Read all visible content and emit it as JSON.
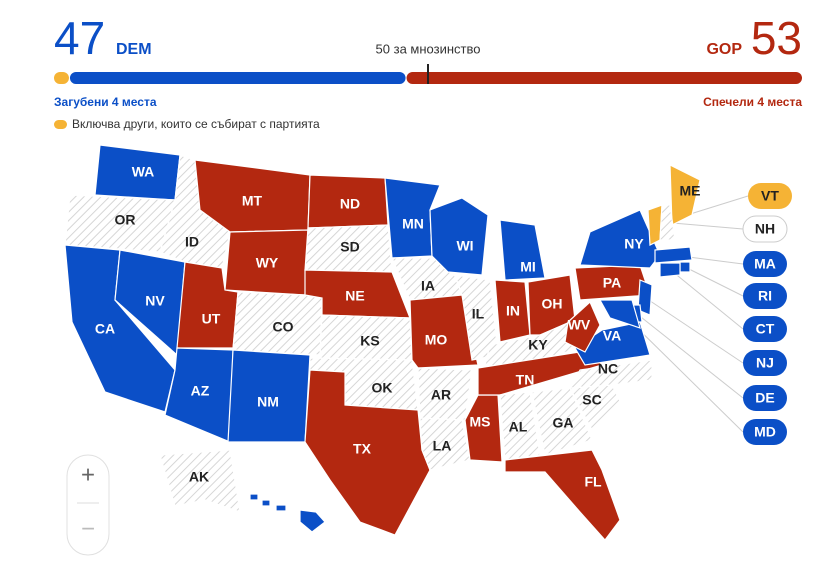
{
  "header": {
    "dem": {
      "seats": 47,
      "label": "DEM",
      "change": "Загубени 4 места"
    },
    "gop": {
      "seats": 53,
      "label": "GOP",
      "change": "Спечели 4 места"
    },
    "majority": {
      "seats": 50,
      "label": "50 за мнозинство"
    }
  },
  "seat_bar": {
    "total": 100,
    "segments": [
      {
        "party": "ind",
        "seats": 2
      },
      {
        "party": "dem",
        "seats": 45
      },
      {
        "party": "gop",
        "seats": 53
      }
    ]
  },
  "legend": {
    "party": "ind",
    "label": "Включва други, които се събират с партията"
  },
  "party_colors": {
    "dem": "#0b4fc7",
    "gop": "#b32810",
    "ind": "#f5b335"
  },
  "states": [
    {
      "label": "WA",
      "party": "dem"
    },
    {
      "label": "OR",
      "party": null
    },
    {
      "label": "CA",
      "party": "dem"
    },
    {
      "label": "NV",
      "party": "dem"
    },
    {
      "label": "ID",
      "party": null
    },
    {
      "label": "MT",
      "party": "gop"
    },
    {
      "label": "WY",
      "party": "gop"
    },
    {
      "label": "UT",
      "party": "gop"
    },
    {
      "label": "CO",
      "party": null
    },
    {
      "label": "AZ",
      "party": "dem"
    },
    {
      "label": "NM",
      "party": "dem"
    },
    {
      "label": "ND",
      "party": "gop"
    },
    {
      "label": "SD",
      "party": null
    },
    {
      "label": "NE",
      "party": "gop"
    },
    {
      "label": "KS",
      "party": null
    },
    {
      "label": "OK",
      "party": null
    },
    {
      "label": "TX",
      "party": "gop"
    },
    {
      "label": "MN",
      "party": "dem"
    },
    {
      "label": "IA",
      "party": null
    },
    {
      "label": "MO",
      "party": "gop"
    },
    {
      "label": "AR",
      "party": null
    },
    {
      "label": "LA",
      "party": null
    },
    {
      "label": "WI",
      "party": "dem"
    },
    {
      "label": "IL",
      "party": null
    },
    {
      "label": "MS",
      "party": "gop"
    },
    {
      "label": "MI",
      "party": "dem"
    },
    {
      "label": "IN",
      "party": "gop"
    },
    {
      "label": "OH",
      "party": "gop"
    },
    {
      "label": "KY",
      "party": null
    },
    {
      "label": "TN",
      "party": "gop"
    },
    {
      "label": "AL",
      "party": null
    },
    {
      "label": "GA",
      "party": null
    },
    {
      "label": "FL",
      "party": "gop"
    },
    {
      "label": "SC",
      "party": null
    },
    {
      "label": "NC",
      "party": null
    },
    {
      "label": "VA",
      "party": "dem"
    },
    {
      "label": "WV",
      "party": "gop"
    },
    {
      "label": "PA",
      "party": "gop"
    },
    {
      "label": "NY",
      "party": "dem"
    },
    {
      "label": "ME",
      "party": "ind"
    },
    {
      "label": "VT",
      "party": "ind"
    },
    {
      "label": "NH",
      "party": null
    },
    {
      "label": "MA",
      "party": "dem"
    },
    {
      "label": "RI",
      "party": "dem"
    },
    {
      "label": "CT",
      "party": "dem"
    },
    {
      "label": "NJ",
      "party": "dem"
    },
    {
      "label": "DE",
      "party": "dem"
    },
    {
      "label": "MD",
      "party": "dem"
    },
    {
      "label": "AK",
      "party": null
    },
    {
      "label": "HI",
      "party": "dem"
    }
  ],
  "zoom": {
    "zoom_in": "+",
    "zoom_out": "−"
  }
}
